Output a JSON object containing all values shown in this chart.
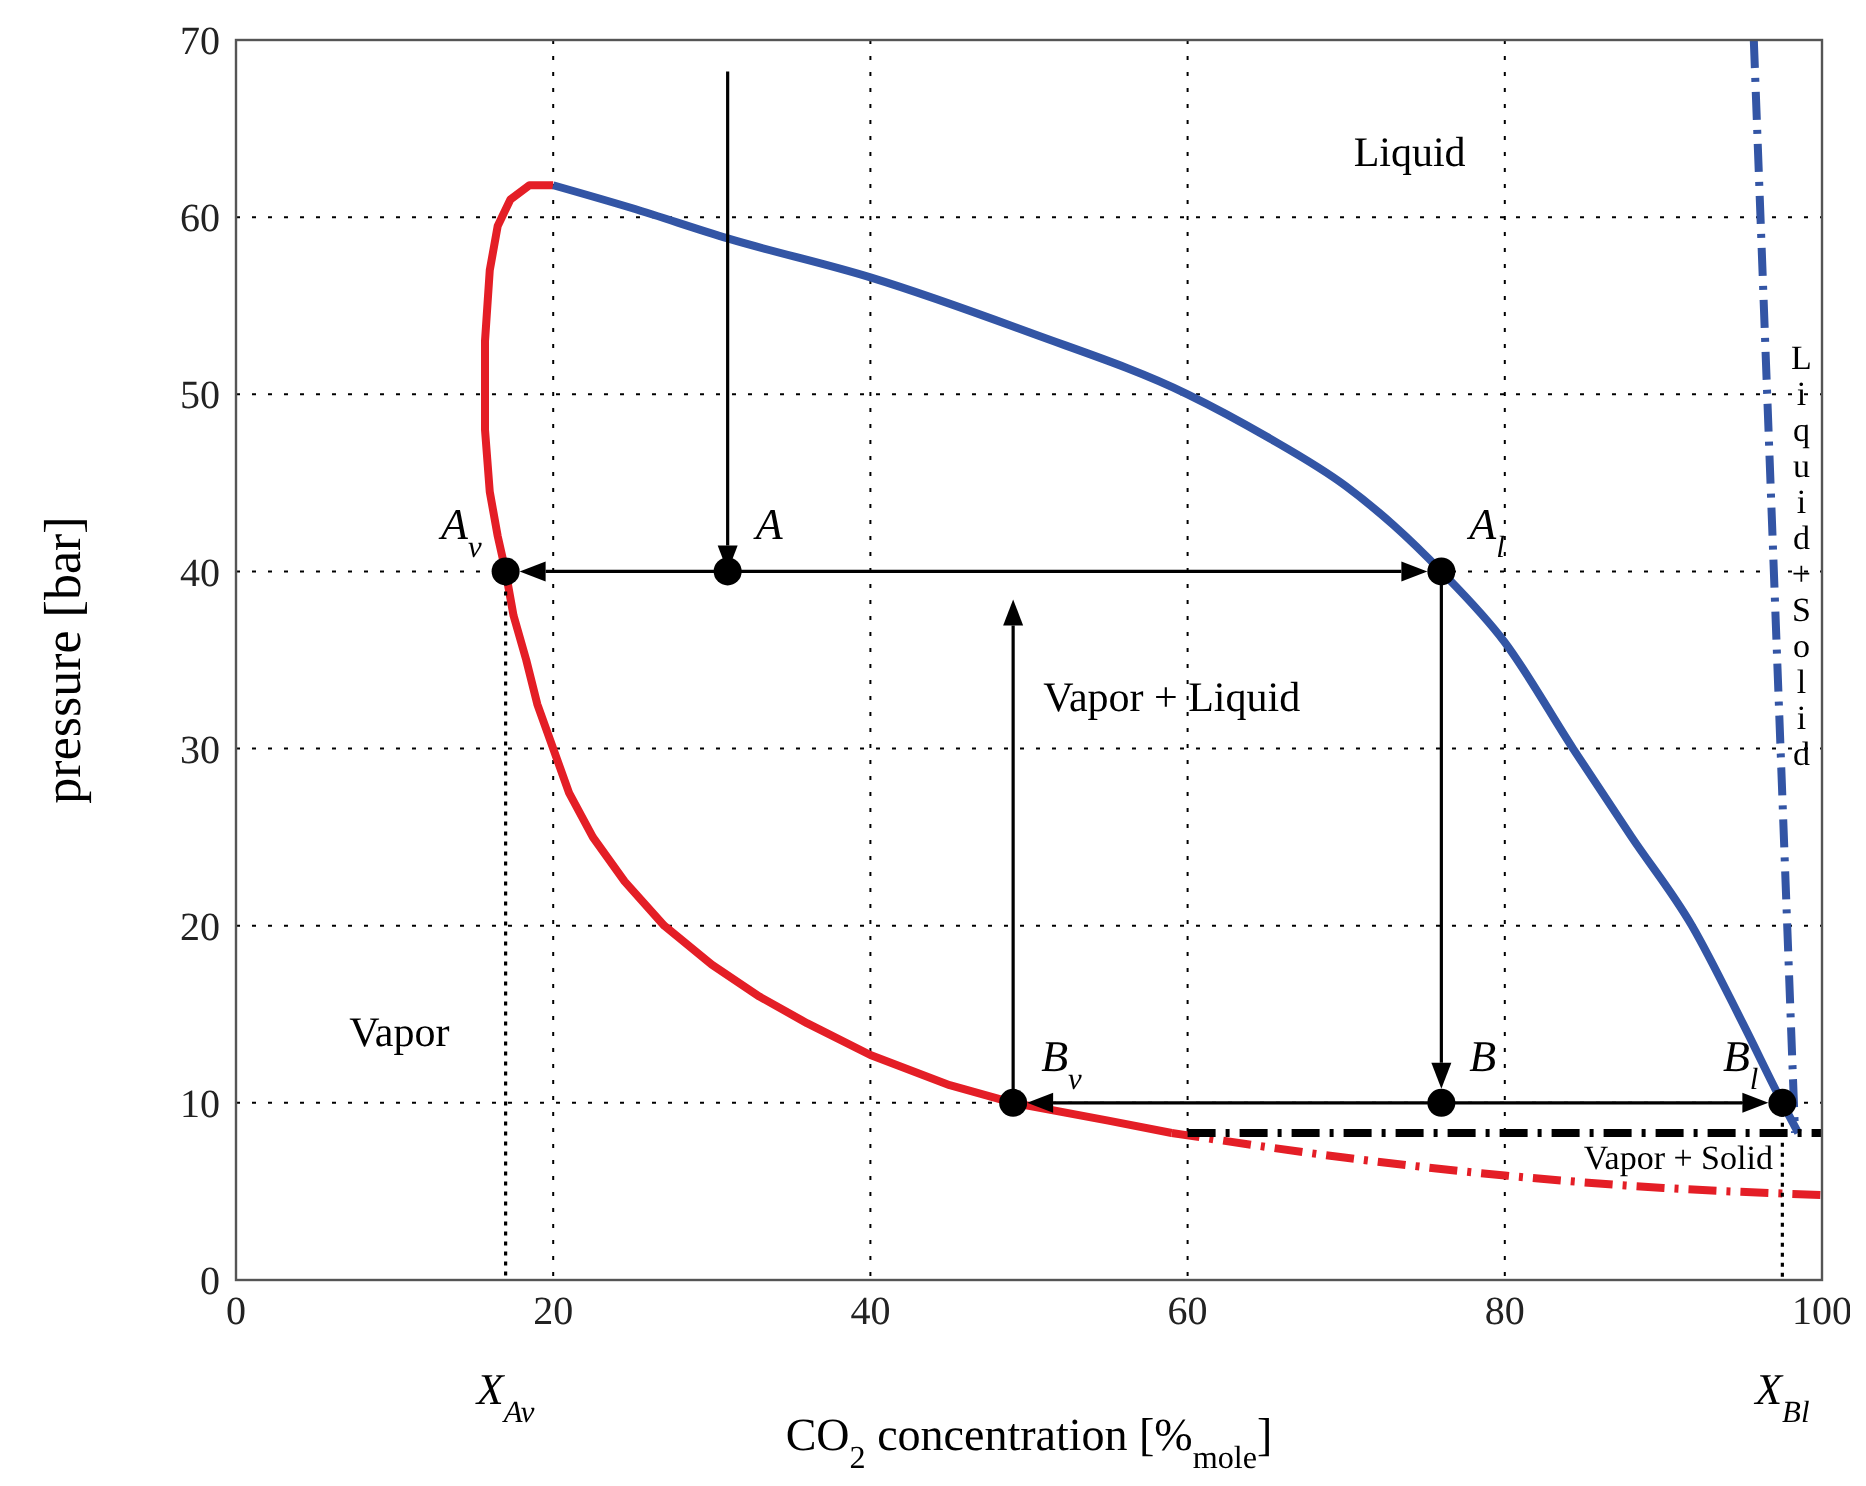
{
  "chart_data": {
    "type": "line",
    "xlabel": "CO$_{2}$ concentration [%$_{mole}$]",
    "ylabel": "pressure [bar]",
    "xlim": [
      0,
      100
    ],
    "ylim": [
      0,
      70
    ],
    "xticks": [
      0,
      20,
      40,
      60,
      80,
      100
    ],
    "yticks": [
      0,
      10,
      20,
      30,
      40,
      50,
      60,
      70
    ],
    "grid": true,
    "series": [
      {
        "color": "#e41e26",
        "line_style": "solid",
        "x": [
          20,
          18.5,
          17.3,
          16.5,
          16,
          15.7,
          15.7,
          16,
          16.5,
          17,
          17.5,
          18.3,
          19,
          20,
          21,
          22.5,
          24.5,
          27,
          30,
          33,
          36,
          40,
          45,
          49,
          55,
          59
        ],
        "values": [
          61.8,
          61.8,
          61,
          59.5,
          57,
          53,
          48,
          44.5,
          42,
          40,
          37.5,
          35,
          32.5,
          30,
          27.5,
          25,
          22.5,
          20,
          17.8,
          16,
          14.5,
          12.7,
          11,
          10,
          9,
          8.3
        ]
      },
      {
        "color": "#e41e26",
        "line_style": "dashed",
        "x": [
          59,
          70,
          80,
          90,
          100
        ],
        "values": [
          8.3,
          6.9,
          5.9,
          5.2,
          4.8
        ]
      },
      {
        "color": "#3355a5",
        "line_style": "solid",
        "x": [
          20,
          25,
          31,
          40,
          50,
          60,
          65,
          70,
          73,
          76,
          80,
          84.3,
          88,
          91.8,
          95,
          97.5,
          98.5
        ],
        "values": [
          61.8,
          60.5,
          58.8,
          56.6,
          53.5,
          50,
          47.6,
          44.8,
          42.6,
          40,
          36,
          30,
          25,
          20,
          14.5,
          10,
          8.3
        ]
      },
      {
        "color": "#3355a5",
        "line_style": "dashed",
        "x": [
          95.7,
          98.3
        ],
        "values": [
          70,
          8.3
        ]
      },
      {
        "color": "#000000",
        "line_style": "dashed",
        "x": [
          60,
          100
        ],
        "values": [
          8.3,
          8.3
        ]
      },
      {
        "color": "#000000",
        "line_style": "dotted",
        "x": [
          17,
          17
        ],
        "values": [
          40,
          0
        ]
      },
      {
        "color": "#000000",
        "line_style": "dotted",
        "x": [
          97.5,
          97.5
        ],
        "values": [
          10,
          0
        ]
      },
      {
        "type": "scatter",
        "color": "#000000",
        "marker": "circle",
        "x": [
          17,
          31,
          76,
          49,
          76,
          97.5
        ],
        "values": [
          40,
          40,
          40,
          10,
          10,
          10
        ]
      }
    ],
    "annotations": [
      {
        "text": "A$_{v}$",
        "x": 17,
        "y": 40
      },
      {
        "text": "A",
        "x": 31,
        "y": 40
      },
      {
        "text": "A$_{l}$",
        "x": 76,
        "y": 40
      },
      {
        "text": "B$_{v}$",
        "x": 49,
        "y": 10
      },
      {
        "text": "B",
        "x": 76,
        "y": 10
      },
      {
        "text": "B$_{l}$",
        "x": 97.5,
        "y": 10
      },
      "Liquid",
      "Vapor + Liquid",
      "Vapor",
      {
        "text": "Vapor + Solid",
        "x": 97.5,
        "y": 10
      },
      "Liquid + Solid",
      {
        "text": "X$_{Av}$",
        "x": 17,
        "y": 0
      },
      {
        "text": "X$_{Bl}$",
        "x": 97.5,
        "y": 0
      }
    ]
  }
}
